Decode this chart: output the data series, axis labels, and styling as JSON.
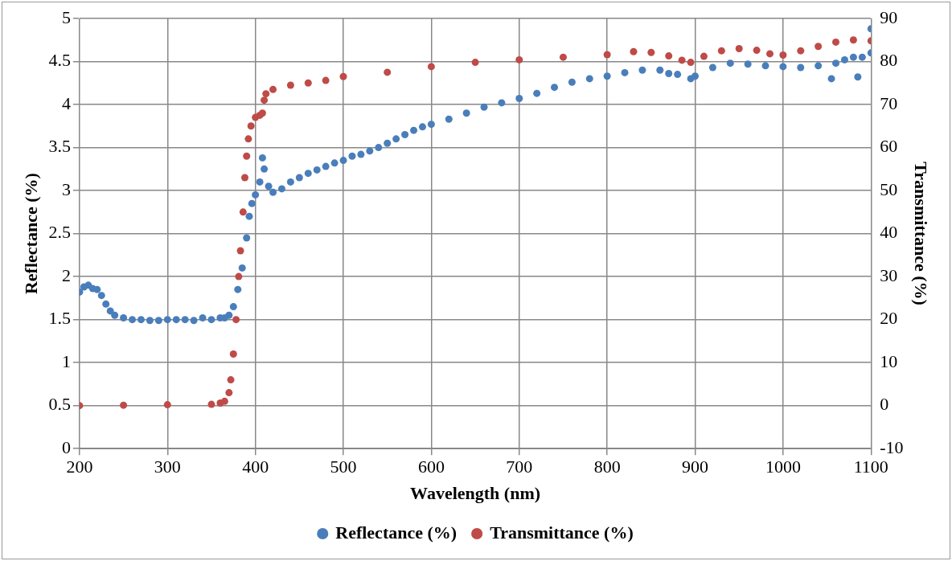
{
  "chart_data": {
    "type": "scatter",
    "xlabel": "Wavelength (nm)",
    "ylabel": "Reflectance (%)",
    "y2label": "Transmittance (%)",
    "xlim": [
      200,
      1100
    ],
    "xticks": [
      200,
      300,
      400,
      500,
      600,
      700,
      800,
      900,
      1000,
      1100
    ],
    "ylim": [
      0,
      5
    ],
    "yticks": [
      0,
      0.5,
      1,
      1.5,
      2,
      2.5,
      3,
      3.5,
      4,
      4.5,
      5
    ],
    "y2lim": [
      -10,
      90
    ],
    "y2ticks": [
      -10,
      0,
      10,
      20,
      30,
      40,
      50,
      60,
      70,
      80,
      90
    ],
    "grid": true,
    "legend": "bottom",
    "marker": "circle",
    "series": [
      {
        "name": "Reflectance (%)",
        "color": "#4a7ebb",
        "x": [
          200,
          205,
          210,
          215,
          220,
          225,
          230,
          235,
          240,
          250,
          260,
          270,
          280,
          290,
          300,
          310,
          320,
          330,
          340,
          350,
          360,
          365,
          370,
          375,
          380,
          385,
          390,
          393,
          396,
          400,
          405,
          408,
          410,
          415,
          420,
          430,
          440,
          450,
          460,
          470,
          480,
          490,
          500,
          510,
          520,
          530,
          540,
          550,
          560,
          570,
          580,
          590,
          600,
          620,
          640,
          660,
          680,
          700,
          720,
          740,
          760,
          780,
          800,
          820,
          840,
          860,
          870,
          880,
          895,
          900,
          920,
          940,
          960,
          980,
          1000,
          1020,
          1040,
          1055,
          1060,
          1070,
          1080,
          1085,
          1090,
          1100,
          1100
        ],
        "values": [
          1.82,
          1.88,
          1.9,
          1.86,
          1.85,
          1.78,
          1.68,
          1.6,
          1.55,
          1.52,
          1.5,
          1.5,
          1.49,
          1.49,
          1.5,
          1.5,
          1.5,
          1.49,
          1.52,
          1.5,
          1.52,
          1.52,
          1.55,
          1.65,
          1.85,
          2.1,
          2.45,
          2.7,
          2.85,
          2.95,
          3.1,
          3.38,
          3.25,
          3.05,
          2.98,
          3.02,
          3.1,
          3.15,
          3.2,
          3.24,
          3.28,
          3.32,
          3.35,
          3.4,
          3.42,
          3.46,
          3.5,
          3.55,
          3.6,
          3.65,
          3.7,
          3.74,
          3.77,
          3.83,
          3.9,
          3.97,
          4.02,
          4.07,
          4.13,
          4.2,
          4.26,
          4.3,
          4.33,
          4.37,
          4.4,
          4.4,
          4.36,
          4.35,
          4.3,
          4.33,
          4.43,
          4.48,
          4.47,
          4.45,
          4.44,
          4.43,
          4.45,
          4.3,
          4.48,
          4.52,
          4.55,
          4.32,
          4.55,
          4.6,
          4.88
        ]
      },
      {
        "name": "Transmittance (%)",
        "color": "#be4b48",
        "axis": "y2",
        "x": [
          200,
          250,
          300,
          350,
          360,
          365,
          370,
          372,
          375,
          378,
          381,
          383,
          386,
          388,
          390,
          392,
          395,
          400,
          405,
          408,
          410,
          412,
          420,
          440,
          460,
          480,
          500,
          550,
          600,
          650,
          700,
          750,
          800,
          830,
          850,
          870,
          885,
          895,
          910,
          930,
          950,
          970,
          985,
          1000,
          1020,
          1040,
          1060,
          1080,
          1100
        ],
        "values": [
          0,
          0.1,
          0.2,
          0.3,
          0.6,
          1,
          3,
          6,
          12,
          20,
          30,
          36,
          45,
          53,
          58,
          62,
          65,
          67,
          67.5,
          68,
          71,
          72.5,
          73.5,
          74.5,
          75,
          75.6,
          76.5,
          77.5,
          78.8,
          79.8,
          80.4,
          81,
          81.6,
          82.3,
          82.1,
          81.3,
          80.3,
          79.8,
          81.2,
          82.5,
          83,
          82.6,
          81.8,
          81.5,
          82.5,
          83.5,
          84.5,
          85,
          84.8
        ]
      }
    ]
  }
}
